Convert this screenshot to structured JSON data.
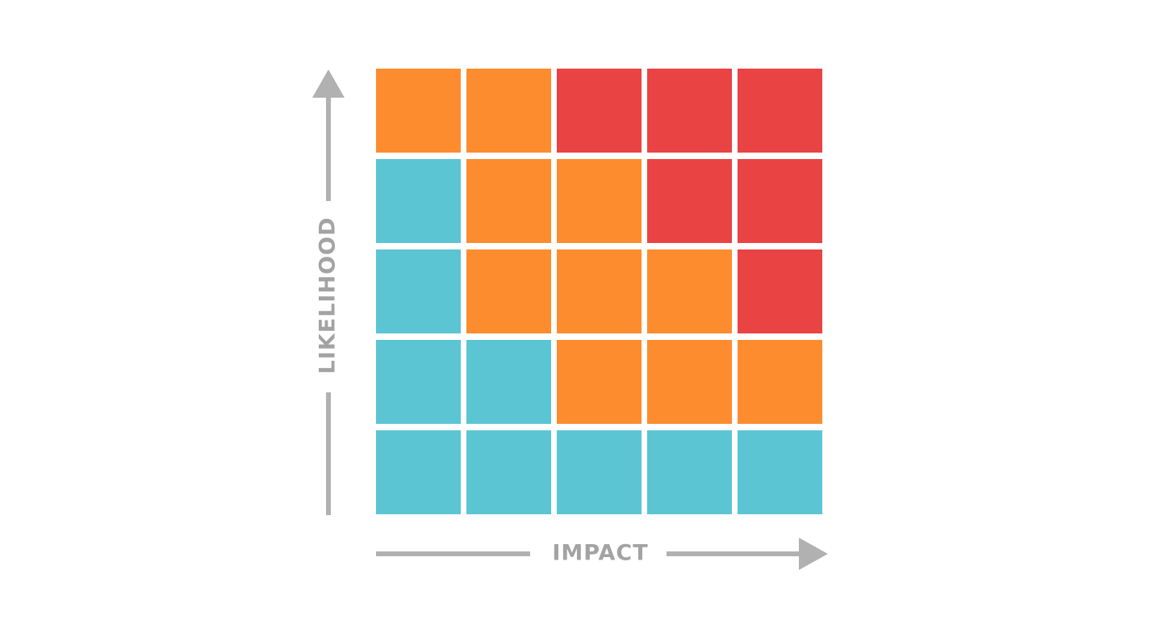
{
  "axes": {
    "y_label": "LIKELIHOOD",
    "x_label": "IMPACT"
  },
  "matrix": {
    "rows": [
      [
        "#fd8c2f",
        "#fd8c2f",
        "#e94343",
        "#e94343",
        "#e94343"
      ],
      [
        "#5bc5d4",
        "#fd8c2f",
        "#fd8c2f",
        "#e94343",
        "#e94343"
      ],
      [
        "#5bc5d4",
        "#fd8c2f",
        "#fd8c2f",
        "#fd8c2f",
        "#e94343"
      ],
      [
        "#5bc5d4",
        "#5bc5d4",
        "#fd8c2f",
        "#fd8c2f",
        "#fd8c2f"
      ],
      [
        "#5bc5d4",
        "#5bc5d4",
        "#5bc5d4",
        "#5bc5d4",
        "#5bc5d4"
      ]
    ]
  }
}
